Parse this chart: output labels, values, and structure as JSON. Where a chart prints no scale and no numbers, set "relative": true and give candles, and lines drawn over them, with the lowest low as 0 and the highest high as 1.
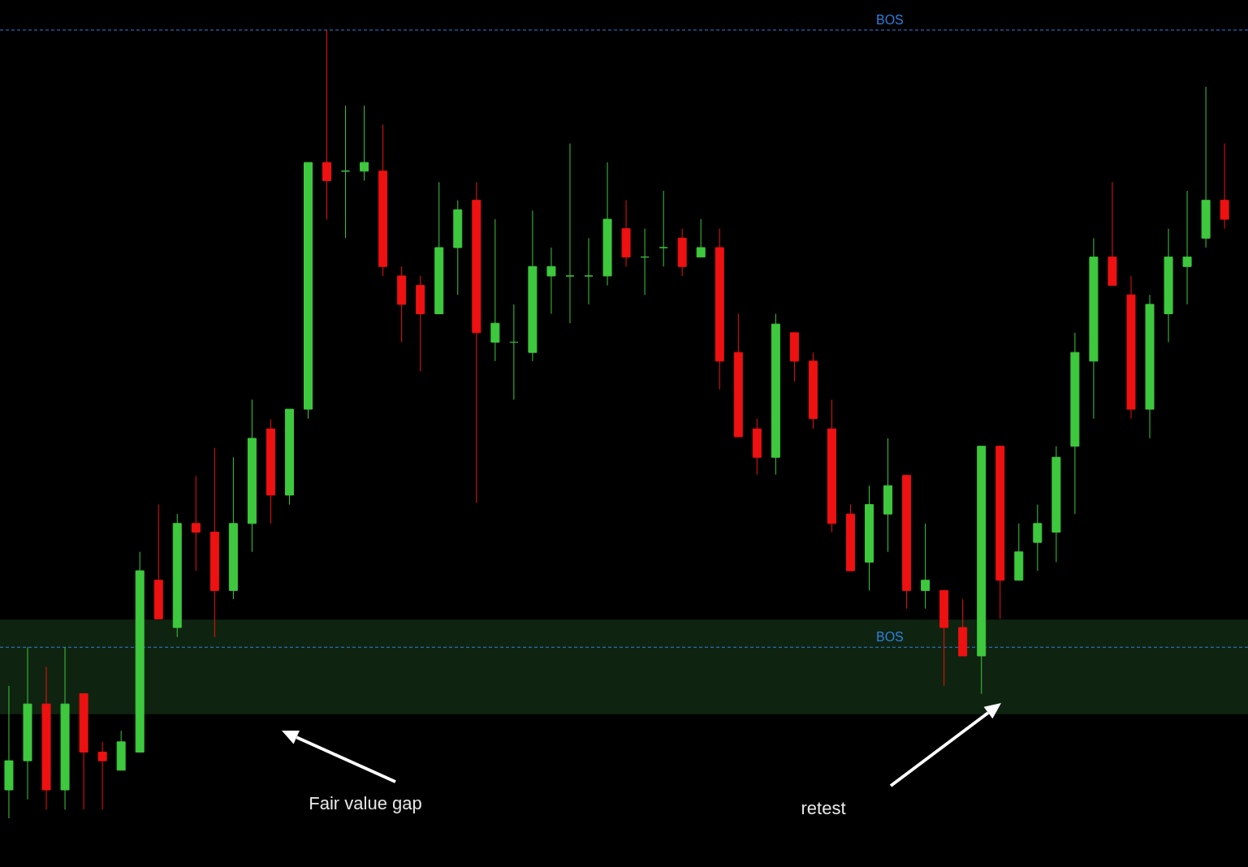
{
  "chart_data": {
    "type": "candlestick",
    "relative": true,
    "categories": [
      null,
      null,
      null,
      null,
      null,
      null,
      null,
      null,
      null,
      null,
      null,
      null,
      null,
      null,
      null,
      null,
      null,
      null,
      null,
      null,
      null,
      null,
      null,
      null,
      null,
      null,
      null,
      null,
      null,
      null,
      null,
      null,
      null,
      null,
      null,
      null,
      null,
      null,
      null,
      null,
      null,
      null,
      null,
      null,
      null,
      null,
      null,
      null,
      null,
      null,
      null,
      null,
      null,
      null,
      null,
      null,
      null,
      null,
      null,
      null,
      null,
      null,
      null,
      null,
      null,
      null
    ],
    "ohlc": [
      [
        0.036,
        0.168,
        0,
        0.073
      ],
      [
        0.073,
        0.217,
        0.024,
        0.145
      ],
      [
        0.145,
        0.192,
        0.011,
        0.036
      ],
      [
        0.036,
        0.217,
        0.011,
        0.145
      ],
      [
        0.158,
        0.158,
        0.011,
        0.084
      ],
      [
        0.084,
        0.097,
        0.011,
        0.073
      ],
      [
        0.061,
        0.111,
        0.061,
        0.097
      ],
      [
        0.084,
        0.338,
        0.084,
        0.314
      ],
      [
        0.302,
        0.398,
        0.253,
        0.253
      ],
      [
        0.242,
        0.386,
        0.23,
        0.374
      ],
      [
        0.374,
        0.434,
        0.314,
        0.363
      ],
      [
        0.363,
        0.47,
        0.23,
        0.289
      ],
      [
        0.289,
        0.458,
        0.278,
        0.374
      ],
      [
        0.374,
        0.531,
        0.338,
        0.482
      ],
      [
        0.494,
        0.506,
        0.374,
        0.41
      ],
      [
        0.41,
        0.519,
        0.398,
        0.519
      ],
      [
        0.519,
        0.832,
        0.507,
        0.832
      ],
      [
        0.832,
        1,
        0.76,
        0.809
      ],
      [
        0.821,
        0.904,
        0.736,
        0.821
      ],
      [
        0.821,
        0.904,
        0.809,
        0.832
      ],
      [
        0.821,
        0.88,
        0.688,
        0.7
      ],
      [
        0.688,
        0.7,
        0.604,
        0.652
      ],
      [
        0.676,
        0.688,
        0.567,
        0.64
      ],
      [
        0.64,
        0.807,
        0.64,
        0.724
      ],
      [
        0.724,
        0.784,
        0.664,
        0.772
      ],
      [
        0.784,
        0.807,
        0.4,
        0.616
      ],
      [
        0.604,
        0.76,
        0.58,
        0.628
      ],
      [
        0.604,
        0.652,
        0.531,
        0.604
      ],
      [
        0.591,
        0.771,
        0.58,
        0.7
      ],
      [
        0.688,
        0.724,
        0.64,
        0.7
      ],
      [
        0.688,
        0.856,
        0.628,
        0.688
      ],
      [
        0.688,
        0.736,
        0.652,
        0.688
      ],
      [
        0.688,
        0.832,
        0.676,
        0.76
      ],
      [
        0.748,
        0.784,
        0.7,
        0.712
      ],
      [
        0.712,
        0.748,
        0.664,
        0.712
      ],
      [
        0.724,
        0.796,
        0.7,
        0.724
      ],
      [
        0.736,
        0.748,
        0.688,
        0.7
      ],
      [
        0.712,
        0.76,
        0.712,
        0.724
      ],
      [
        0.724,
        0.748,
        0.544,
        0.58
      ],
      [
        0.591,
        0.64,
        0.484,
        0.484
      ],
      [
        0.494,
        0.507,
        0.436,
        0.458
      ],
      [
        0.458,
        0.64,
        0.436,
        0.627
      ],
      [
        0.616,
        0.616,
        0.554,
        0.58
      ],
      [
        0.58,
        0.591,
        0.494,
        0.507
      ],
      [
        0.494,
        0.531,
        0.363,
        0.374
      ],
      [
        0.386,
        0.398,
        0.314,
        0.314
      ],
      [
        0.325,
        0.422,
        0.289,
        0.398
      ],
      [
        0.386,
        0.482,
        0.338,
        0.422
      ],
      [
        0.435,
        0.435,
        0.266,
        0.289
      ],
      [
        0.289,
        0.374,
        0.266,
        0.302
      ],
      [
        0.289,
        0.289,
        0.168,
        0.242
      ],
      [
        0.242,
        0.278,
        0.206,
        0.206
      ],
      [
        0.206,
        0.472,
        0.158,
        0.472
      ],
      [
        0.472,
        0.472,
        0.253,
        0.302
      ],
      [
        0.302,
        0.374,
        0.302,
        0.338
      ],
      [
        0.35,
        0.398,
        0.314,
        0.374
      ],
      [
        0.363,
        0.472,
        0.325,
        0.458
      ],
      [
        0.472,
        0.616,
        0.386,
        0.591
      ],
      [
        0.58,
        0.736,
        0.507,
        0.712
      ],
      [
        0.712,
        0.807,
        0.676,
        0.676
      ],
      [
        0.664,
        0.688,
        0.507,
        0.519
      ],
      [
        0.519,
        0.664,
        0.482,
        0.652
      ],
      [
        0.64,
        0.748,
        0.604,
        0.712
      ],
      [
        0.7,
        0.796,
        0.652,
        0.712
      ],
      [
        0.736,
        0.928,
        0.724,
        0.784
      ],
      [
        0.784,
        0.856,
        0.748,
        0.76
      ]
    ],
    "ref_lines": [
      {
        "axis": "y",
        "value": 1,
        "label": "BOS",
        "color": "#2f7fe0",
        "line_style": "dashed"
      },
      {
        "axis": "y",
        "value": 0.217,
        "label": "BOS",
        "color": "#2f7fe0",
        "line_style": "dashed"
      }
    ],
    "bands": [
      {
        "axis": "y",
        "from": 0.132,
        "to": 0.252,
        "color": "#0f2410"
      }
    ],
    "annotations": [
      "Fair value gap",
      "retest"
    ]
  }
}
